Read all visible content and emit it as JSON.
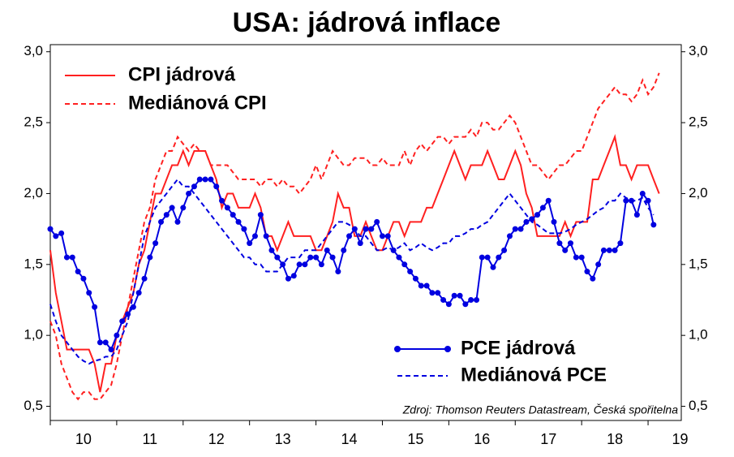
{
  "chart_data": {
    "type": "line",
    "title": "USA: jádrová inflace",
    "annotation": "Zdroj: Thomson Reuters Datastream, Česká spořitelna",
    "x": [
      10,
      10.083,
      10.167,
      10.25,
      10.333,
      10.417,
      10.5,
      10.583,
      10.667,
      10.75,
      10.833,
      10.917,
      11,
      11.083,
      11.167,
      11.25,
      11.333,
      11.417,
      11.5,
      11.583,
      11.667,
      11.75,
      11.833,
      11.917,
      12,
      12.083,
      12.167,
      12.25,
      12.333,
      12.417,
      12.5,
      12.583,
      12.667,
      12.75,
      12.833,
      12.917,
      13,
      13.083,
      13.167,
      13.25,
      13.333,
      13.417,
      13.5,
      13.583,
      13.667,
      13.75,
      13.833,
      13.917,
      14,
      14.083,
      14.167,
      14.25,
      14.333,
      14.417,
      14.5,
      14.583,
      14.667,
      14.75,
      14.833,
      14.917,
      15,
      15.083,
      15.167,
      15.25,
      15.333,
      15.417,
      15.5,
      15.583,
      15.667,
      15.75,
      15.833,
      15.917,
      16,
      16.083,
      16.167,
      16.25,
      16.333,
      16.417,
      16.5,
      16.583,
      16.667,
      16.75,
      16.833,
      16.917,
      17,
      17.083,
      17.167,
      17.25,
      17.333,
      17.417,
      17.5,
      17.583,
      17.667,
      17.75,
      17.833,
      17.917,
      18,
      18.083,
      18.167,
      18.25,
      18.333,
      18.417,
      18.5,
      18.583,
      18.667,
      18.75,
      18.833,
      18.917,
      19,
      19.083,
      19.167
    ],
    "xlim": [
      10,
      19.5
    ],
    "xticks": [
      10,
      11,
      12,
      13,
      14,
      15,
      16,
      17,
      18,
      19
    ],
    "ylim": [
      0.4,
      3.05
    ],
    "yticks": [
      {
        "value": 0.5,
        "label": "0,5"
      },
      {
        "value": 1,
        "label": "1,0"
      },
      {
        "value": 1.5,
        "label": "1,5"
      },
      {
        "value": 2,
        "label": "2,0"
      },
      {
        "value": 2.5,
        "label": "2,5"
      },
      {
        "value": 3,
        "label": "3,0"
      }
    ],
    "series": [
      {
        "name": "CPI jádrová",
        "color": "#ff2020",
        "dash": false,
        "markers": false,
        "values": [
          1.6,
          1.3,
          1.1,
          0.9,
          0.9,
          0.9,
          0.9,
          0.9,
          0.8,
          0.6,
          0.8,
          0.8,
          1.0,
          1.1,
          1.2,
          1.3,
          1.5,
          1.6,
          1.8,
          2.0,
          2.0,
          2.1,
          2.2,
          2.2,
          2.3,
          2.2,
          2.3,
          2.3,
          2.3,
          2.2,
          2.1,
          1.9,
          2.0,
          2.0,
          1.9,
          1.9,
          1.9,
          2.0,
          1.9,
          1.7,
          1.7,
          1.6,
          1.7,
          1.8,
          1.7,
          1.7,
          1.7,
          1.7,
          1.6,
          1.6,
          1.7,
          1.8,
          2.0,
          1.9,
          1.9,
          1.7,
          1.7,
          1.8,
          1.7,
          1.6,
          1.6,
          1.7,
          1.8,
          1.8,
          1.7,
          1.8,
          1.8,
          1.8,
          1.9,
          1.9,
          2.0,
          2.1,
          2.2,
          2.3,
          2.2,
          2.1,
          2.2,
          2.2,
          2.2,
          2.3,
          2.2,
          2.1,
          2.1,
          2.2,
          2.3,
          2.2,
          2.0,
          1.9,
          1.7,
          1.7,
          1.7,
          1.7,
          1.7,
          1.8,
          1.7,
          1.8,
          1.8,
          1.8,
          2.1,
          2.1,
          2.2,
          2.3,
          2.4,
          2.2,
          2.2,
          2.1,
          2.2,
          2.2,
          2.2,
          2.1,
          2.0
        ]
      },
      {
        "name": "Mediánová CPI",
        "color": "#ff2020",
        "dash": true,
        "markers": false,
        "values": [
          1.1,
          1.0,
          0.8,
          0.7,
          0.6,
          0.55,
          0.6,
          0.6,
          0.55,
          0.55,
          0.6,
          0.65,
          0.8,
          1.0,
          1.2,
          1.4,
          1.6,
          1.8,
          1.9,
          2.1,
          2.2,
          2.3,
          2.3,
          2.4,
          2.35,
          2.3,
          2.35,
          2.3,
          2.3,
          2.2,
          2.2,
          2.2,
          2.2,
          2.15,
          2.1,
          2.1,
          2.1,
          2.1,
          2.05,
          2.1,
          2.1,
          2.05,
          2.1,
          2.05,
          2.05,
          2.0,
          2.05,
          2.1,
          2.2,
          2.1,
          2.2,
          2.3,
          2.25,
          2.2,
          2.2,
          2.25,
          2.25,
          2.25,
          2.2,
          2.2,
          2.25,
          2.2,
          2.2,
          2.2,
          2.3,
          2.2,
          2.3,
          2.35,
          2.3,
          2.35,
          2.4,
          2.4,
          2.35,
          2.4,
          2.4,
          2.4,
          2.45,
          2.4,
          2.5,
          2.5,
          2.45,
          2.45,
          2.5,
          2.55,
          2.5,
          2.4,
          2.3,
          2.2,
          2.2,
          2.15,
          2.1,
          2.15,
          2.2,
          2.2,
          2.25,
          2.3,
          2.3,
          2.4,
          2.5,
          2.6,
          2.65,
          2.7,
          2.75,
          2.7,
          2.7,
          2.65,
          2.7,
          2.8,
          2.7,
          2.75,
          2.85
        ]
      },
      {
        "name": "PCE jádrová",
        "color": "#0000e0",
        "dash": false,
        "markers": true,
        "values": [
          1.75,
          1.7,
          1.72,
          1.55,
          1.55,
          1.45,
          1.4,
          1.3,
          1.2,
          0.95,
          0.95,
          0.9,
          1.0,
          1.1,
          1.15,
          1.2,
          1.3,
          1.4,
          1.55,
          1.65,
          1.8,
          1.85,
          1.9,
          1.8,
          1.9,
          2.0,
          2.05,
          2.1,
          2.1,
          2.1,
          2.05,
          1.95,
          1.9,
          1.85,
          1.8,
          1.75,
          1.65,
          1.7,
          1.85,
          1.7,
          1.6,
          1.55,
          1.5,
          1.4,
          1.42,
          1.5,
          1.5,
          1.55,
          1.55,
          1.5,
          1.6,
          1.55,
          1.45,
          1.6,
          1.7,
          1.75,
          1.65,
          1.75,
          1.75,
          1.8,
          1.7,
          1.7,
          1.6,
          1.55,
          1.5,
          1.45,
          1.4,
          1.35,
          1.35,
          1.3,
          1.3,
          1.25,
          1.22,
          1.28,
          1.28,
          1.22,
          1.25,
          1.25,
          1.55,
          1.55,
          1.48,
          1.55,
          1.6,
          1.7,
          1.75,
          1.75,
          1.8,
          1.82,
          1.85,
          1.9,
          1.95,
          1.8,
          1.65,
          1.6,
          1.65,
          1.55,
          1.55,
          1.45,
          1.4,
          1.5,
          1.6,
          1.6,
          1.6,
          1.65,
          1.95,
          1.95,
          1.85,
          2.0,
          1.95,
          1.78,
          null
        ]
      },
      {
        "name": "Mediánová PCE",
        "color": "#0000e0",
        "dash": true,
        "markers": false,
        "values": [
          1.22,
          1.1,
          1.0,
          0.95,
          0.9,
          0.85,
          0.82,
          0.8,
          0.82,
          0.83,
          0.85,
          0.85,
          0.9,
          1.0,
          1.1,
          1.3,
          1.5,
          1.7,
          1.8,
          1.9,
          1.95,
          2.0,
          2.05,
          2.1,
          2.05,
          2.05,
          2.0,
          1.95,
          1.9,
          1.85,
          1.8,
          1.75,
          1.7,
          1.65,
          1.6,
          1.55,
          1.55,
          1.5,
          1.5,
          1.45,
          1.45,
          1.45,
          1.5,
          1.55,
          1.55,
          1.55,
          1.6,
          1.6,
          1.6,
          1.65,
          1.7,
          1.75,
          1.8,
          1.8,
          1.78,
          1.75,
          1.7,
          1.7,
          1.65,
          1.6,
          1.6,
          1.62,
          1.6,
          1.62,
          1.65,
          1.6,
          1.62,
          1.65,
          1.62,
          1.6,
          1.62,
          1.65,
          1.65,
          1.7,
          1.7,
          1.72,
          1.75,
          1.75,
          1.78,
          1.8,
          1.85,
          1.9,
          1.95,
          2.0,
          1.95,
          1.9,
          1.85,
          1.8,
          1.78,
          1.75,
          1.72,
          1.72,
          1.72,
          1.73,
          1.75,
          1.78,
          1.8,
          1.82,
          1.85,
          1.88,
          1.9,
          1.95,
          1.95,
          2.0,
          1.97,
          1.95,
          1.95,
          1.97,
          1.9,
          1.85,
          null
        ]
      }
    ]
  }
}
